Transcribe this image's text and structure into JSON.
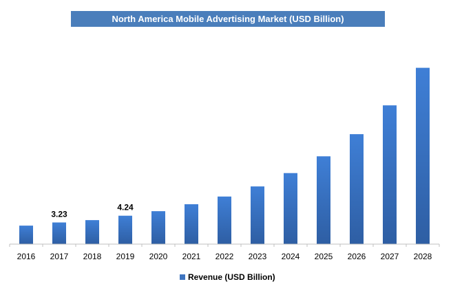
{
  "chart_data": {
    "type": "bar",
    "title": "North America Mobile Advertising Market (USD Billion)",
    "categories": [
      "2016",
      "2017",
      "2018",
      "2019",
      "2020",
      "2021",
      "2022",
      "2023",
      "2024",
      "2025",
      "2026",
      "2027",
      "2028"
    ],
    "series": [
      {
        "name": "Revenue (USD Billion)",
        "values": [
          2.76,
          3.23,
          3.58,
          4.24,
          4.91,
          5.95,
          7.1,
          8.6,
          10.6,
          13.1,
          16.4,
          20.7,
          26.3
        ],
        "color": "#3e74bf"
      }
    ],
    "data_labels": [
      {
        "index": 1,
        "text": "3.23"
      },
      {
        "index": 3,
        "text": "4.24"
      }
    ],
    "ylim": [
      0,
      28
    ],
    "grid": false,
    "legend_position": "bottom"
  }
}
